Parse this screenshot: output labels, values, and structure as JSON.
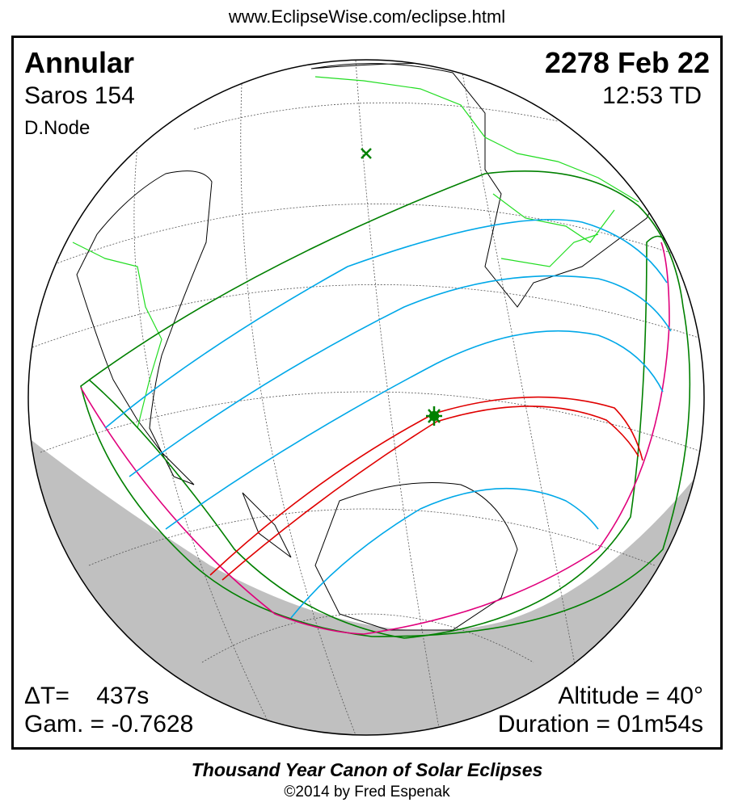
{
  "url": "www.EclipseWise.com/eclipse.html",
  "eclipse": {
    "type": "Annular",
    "saros": "Saros 154",
    "node": "D.Node",
    "date": "2278 Feb 22",
    "time": "12:53 TD",
    "delta_t": "ΔT=    437s",
    "gamma": "Gam. = -0.7628",
    "altitude": "Altitude = 40°",
    "duration": "Duration = 01m54s"
  },
  "footer": {
    "title": "Thousand Year Canon of Solar Eclipses",
    "credit": "©2014 by Fred Espenak"
  },
  "colors": {
    "penumbra_limit": "#008000",
    "partial_lines": "#00a8e8",
    "central_path": "#e00000",
    "rise_set": "#e0007c",
    "land": "#22dd22",
    "night": "#c0c0c0"
  }
}
